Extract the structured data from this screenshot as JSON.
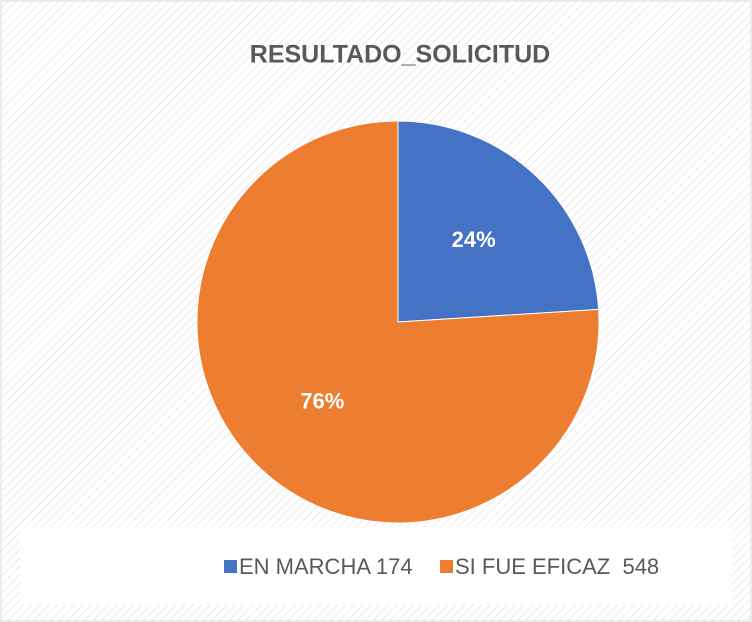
{
  "chart_data": {
    "type": "pie",
    "title": "RESULTADO_SOLICITUD",
    "categories": [
      "EN MARCHA 174",
      "SI FUE EFICAZ  548"
    ],
    "values": [
      24,
      76
    ],
    "value_labels": [
      "24%",
      "76%"
    ],
    "colors": [
      "#4472c4",
      "#ed7d31"
    ]
  }
}
